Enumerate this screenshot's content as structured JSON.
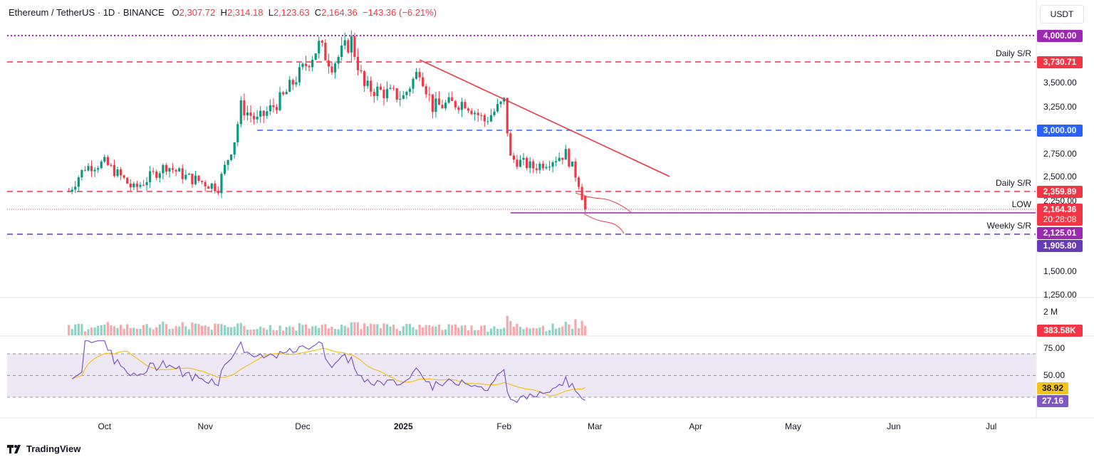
{
  "header": {
    "symbol": "Ethereum / TetherUS · 1D · BINANCE",
    "open_label": "O",
    "open": "2,307.72",
    "high_label": "H",
    "high": "2,314.18",
    "low_label": "L",
    "low": "2,123.63",
    "close_label": "C",
    "close": "2,164.36",
    "change": "−143.36 (−6.21%)"
  },
  "currency": "USDT",
  "brand": "TradingView",
  "colors": {
    "up": "#089981",
    "down": "#f23645",
    "rsi": "#7e57c2",
    "rsi_ma": "#f5c21b",
    "support": "#2962ff",
    "purple": "#9c27b0",
    "fill": "#ede7f6"
  },
  "chart_data": {
    "type": "candlestick",
    "symbol": "ETHUSDT",
    "ylim": [
      1250,
      4100
    ],
    "y_ticks": [
      "3,500.00",
      "3,250.00",
      "2,750.00",
      "2,500.00",
      "2,250.00",
      "1,500.00",
      "1,250.00"
    ],
    "x_ticks": [
      "Oct",
      "Nov",
      "Dec",
      "2025",
      "Feb",
      "Mar",
      "Apr",
      "May",
      "Jun",
      "Jul"
    ],
    "levels": [
      {
        "value": 4000.0,
        "tag": "4,000.00",
        "label": "",
        "style": "dotted",
        "color": "#9c27b0"
      },
      {
        "value": 3730.71,
        "tag": "3,730.71",
        "label": "Daily S/R",
        "style": "dashed",
        "color": "#f23645"
      },
      {
        "value": 3000.0,
        "tag": "3,000.00",
        "label": "",
        "style": "dashed",
        "color": "#2962ff"
      },
      {
        "value": 2359.89,
        "tag": "2,359.89",
        "label": "Daily S/R",
        "style": "dashed",
        "color": "#f23645"
      },
      {
        "value": 2125.01,
        "tag": "2,125.01",
        "label": "LOW",
        "style": "solid",
        "color": "#9c27b0"
      },
      {
        "value": 1905.8,
        "tag": "1,905.80",
        "label": "Weekly S/R",
        "style": "dashed",
        "color": "#673ab7"
      }
    ],
    "last_price": {
      "value": 2164.36,
      "tag": "2,164.36",
      "countdown": "20:28:08"
    },
    "volume": {
      "axis_label": "2 M",
      "last": "383.58K"
    },
    "rsi": {
      "ticks": [
        "75.00",
        "50.00"
      ],
      "upper": 70,
      "middle": 50,
      "lower": 30,
      "value": "27.16",
      "ma": "38.92"
    },
    "series": [
      {
        "x": [
          "2024-09-20",
          "2024-09-25",
          "2024-10-01",
          "2024-10-10",
          "2024-10-20",
          "2024-10-26",
          "2024-11-05",
          "2024-11-10",
          "2024-11-12",
          "2024-11-17",
          "2024-11-25",
          "2024-11-30",
          "2024-12-06",
          "2024-12-10",
          "2024-12-16",
          "2024-12-20",
          "2025-01-01",
          "2025-01-06",
          "2025-01-10",
          "2025-01-20",
          "2025-01-26",
          "2025-02-01",
          "2025-02-03",
          "2025-02-10",
          "2025-02-20",
          "2025-02-24",
          "2025-02-26"
        ],
        "close": [
          2360,
          2600,
          2650,
          2380,
          2620,
          2500,
          2400,
          2900,
          3250,
          3100,
          3350,
          3600,
          3900,
          3700,
          3950,
          3450,
          3350,
          3650,
          3250,
          3300,
          3100,
          3300,
          2700,
          2600,
          2750,
          2450,
          2164
        ]
      }
    ]
  }
}
